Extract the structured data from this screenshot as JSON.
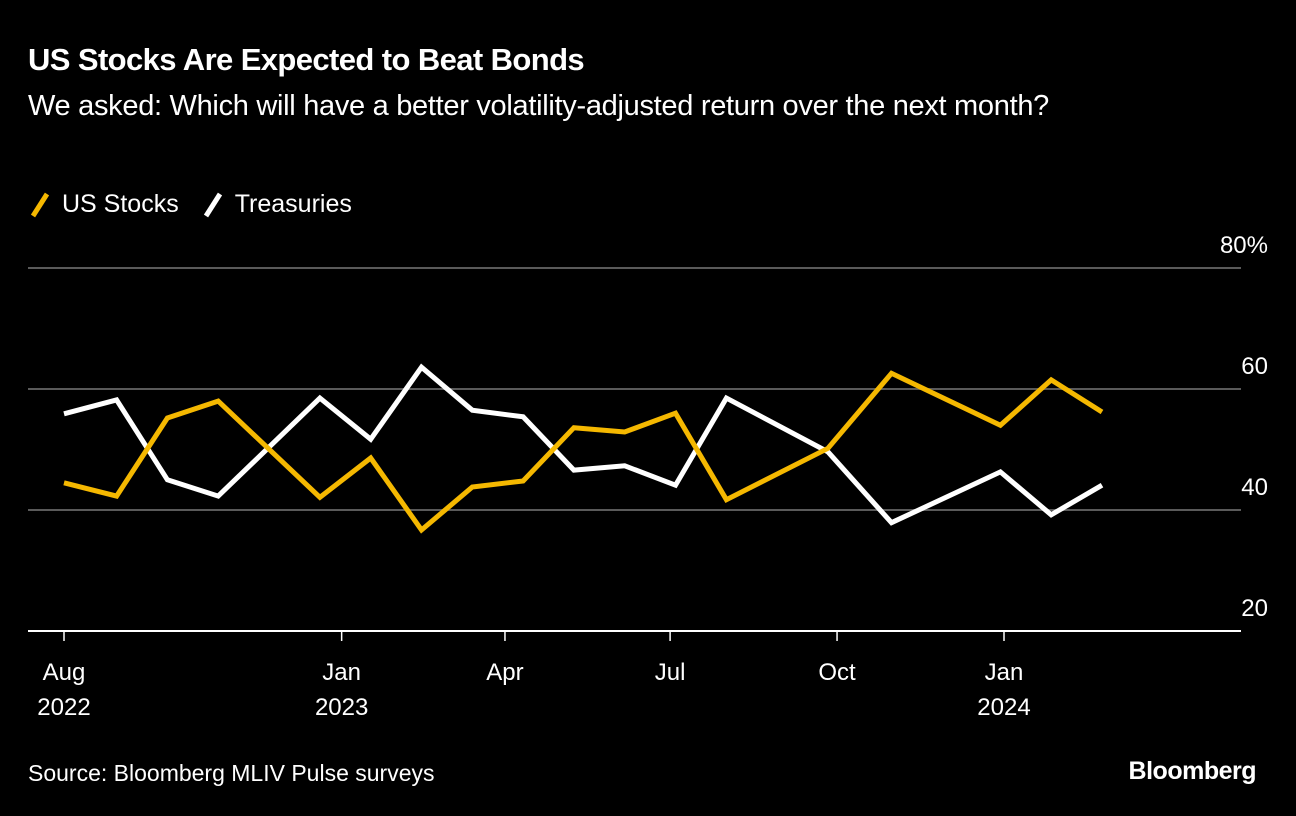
{
  "header": {
    "title": "US Stocks Are Expected to Beat Bonds",
    "subtitle": "We asked: Which will have a better volatility-adjusted return over the next month?"
  },
  "legend": [
    {
      "label": "US Stocks",
      "color": "#F5B800",
      "icon": "diagonal-line-swatch"
    },
    {
      "label": "Treasuries",
      "color": "#FFFFFF",
      "icon": "diagonal-line-swatch"
    }
  ],
  "footer": {
    "source": "Source: Bloomberg MLIV Pulse surveys",
    "logo": "Bloomberg"
  },
  "colors": {
    "background": "#000000",
    "gridline": "#5a5a5a",
    "axis": "#ffffff",
    "us_stocks": "#F5B800",
    "treasuries": "#FFFFFF"
  },
  "chart_data": {
    "type": "line",
    "title": "US Stocks Are Expected to Beat Bonds",
    "subtitle": "We asked: Which will have a better volatility-adjusted return over the next month?",
    "xlabel": "",
    "ylabel": "",
    "ylim": [
      20,
      80
    ],
    "yticks": [
      {
        "value": 80,
        "label": "80%"
      },
      {
        "value": 60,
        "label": "60"
      },
      {
        "value": 40,
        "label": "40"
      },
      {
        "value": 20,
        "label": "20"
      }
    ],
    "y_axis_side": "right",
    "grid": true,
    "xlim": [
      "2022-07-20",
      "2024-05-01"
    ],
    "xticks": [
      {
        "date": "2022-08-01",
        "line1": "Aug",
        "line2": "2022"
      },
      {
        "date": "2023-01-01",
        "line1": "Jan",
        "line2": "2023"
      },
      {
        "date": "2023-04-01",
        "line1": "Apr",
        "line2": ""
      },
      {
        "date": "2023-07-01",
        "line1": "Jul",
        "line2": ""
      },
      {
        "date": "2023-10-01",
        "line1": "Oct",
        "line2": ""
      },
      {
        "date": "2024-01-01",
        "line1": "Jan",
        "line2": "2024"
      }
    ],
    "x": [
      "2022-08-01",
      "2022-08-30",
      "2022-09-27",
      "2022-10-25",
      "2022-12-20",
      "2023-01-17",
      "2023-02-14",
      "2023-03-14",
      "2023-04-11",
      "2023-05-09",
      "2023-06-06",
      "2023-07-04",
      "2023-08-01",
      "2023-09-26",
      "2023-10-31",
      "2023-12-30",
      "2024-01-27",
      "2024-02-24"
    ],
    "legend_position": "top-left",
    "series": [
      {
        "name": "US Stocks",
        "color": "#F5B800",
        "values": [
          44.5,
          42.3,
          55.2,
          58.0,
          42.1,
          48.6,
          36.7,
          43.8,
          44.8,
          53.6,
          52.9,
          56.0,
          41.7,
          50.2,
          62.6,
          54.0,
          61.5,
          56.2
        ]
      },
      {
        "name": "Treasuries",
        "color": "#FFFFFF",
        "values": [
          55.9,
          58.2,
          45.0,
          42.3,
          58.5,
          51.7,
          63.6,
          56.5,
          55.4,
          46.6,
          47.3,
          44.1,
          58.5,
          49.6,
          37.9,
          46.3,
          39.2,
          44.1
        ]
      }
    ]
  }
}
